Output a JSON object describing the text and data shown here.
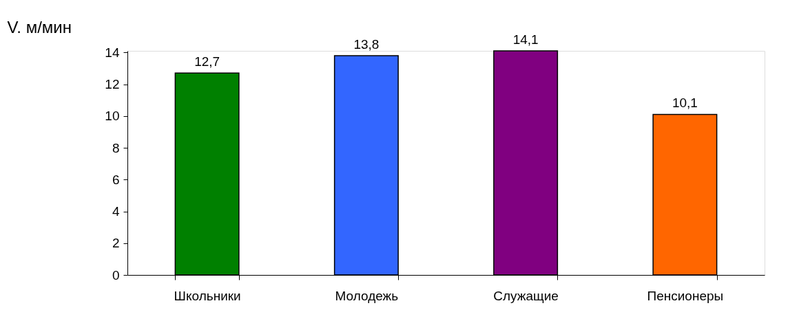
{
  "chart_data": {
    "type": "bar",
    "ylabel": "V. м/мин",
    "categories": [
      "Школьники",
      "Молодежь",
      "Служащие",
      "Пенсионеры"
    ],
    "values": [
      12.7,
      13.8,
      14.1,
      10.1
    ],
    "colors": [
      "#008000",
      "#3366ff",
      "#800080",
      "#ff6600"
    ],
    "value_labels": [
      "12,7",
      "13,8",
      "14,1",
      "10,1"
    ],
    "ylim": [
      0,
      14.1
    ],
    "yticks": [
      0,
      2,
      4,
      6,
      8,
      10,
      12,
      14
    ],
    "grid": false
  }
}
